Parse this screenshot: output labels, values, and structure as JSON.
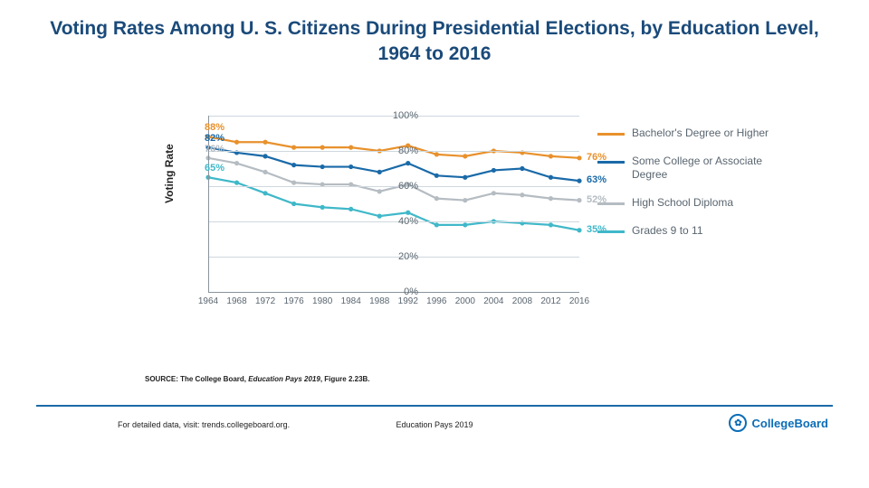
{
  "title": "Voting Rates Among U. S. Citizens During Presidential Elections, by Education Level, 1964 to 2016",
  "chart": {
    "type": "line",
    "yaxis_title": "Voting Rate",
    "years": [
      1964,
      1968,
      1972,
      1976,
      1980,
      1984,
      1988,
      1992,
      1996,
      2000,
      2004,
      2008,
      2012,
      2016
    ],
    "xlim": [
      1964,
      2016
    ],
    "ylim": [
      0,
      100
    ],
    "ytick_step": 20,
    "yticks": [
      "0%",
      "20%",
      "40%",
      "60%",
      "80%",
      "100%"
    ],
    "grid_color": "#cfd8df",
    "axis_color": "#8a949c",
    "tick_font_color": "#5a6670",
    "series": [
      {
        "key": "bach",
        "label": "Bachelor's Degree or Higher",
        "color": "#e8912c",
        "values": [
          88,
          85,
          85,
          82,
          82,
          82,
          80,
          83,
          78,
          77,
          80,
          79,
          77,
          76
        ],
        "first_label": "88%",
        "last_label": "76%"
      },
      {
        "key": "some",
        "label": "Some College or Associate Degree",
        "color": "#1a6aa8",
        "values": [
          82,
          79,
          77,
          72,
          71,
          71,
          68,
          73,
          66,
          65,
          69,
          70,
          65,
          63
        ],
        "first_label": "82%",
        "last_label": "63%"
      },
      {
        "key": "hs",
        "label": "High School Diploma",
        "color": "#b5bcc2",
        "values": [
          76,
          73,
          68,
          62,
          61,
          61,
          57,
          61,
          53,
          52,
          56,
          55,
          53,
          52
        ],
        "first_label": "76%",
        "last_label": "52%"
      },
      {
        "key": "g911",
        "label": "Grades 9 to 11",
        "color": "#3fb8c9",
        "values": [
          65,
          62,
          56,
          50,
          48,
          47,
          43,
          45,
          38,
          38,
          40,
          39,
          38,
          35
        ],
        "first_label": "65%",
        "last_label": "35%"
      }
    ]
  },
  "source_prefix": "SOURCE: The College Board, ",
  "source_title": "Education Pays 2019",
  "source_suffix": ", Figure 2.23B.",
  "footer_left": "For detailed data, visit: trends.collegeboard.org.",
  "footer_center": "Education Pays 2019",
  "logo_text": "CollegeBoard"
}
